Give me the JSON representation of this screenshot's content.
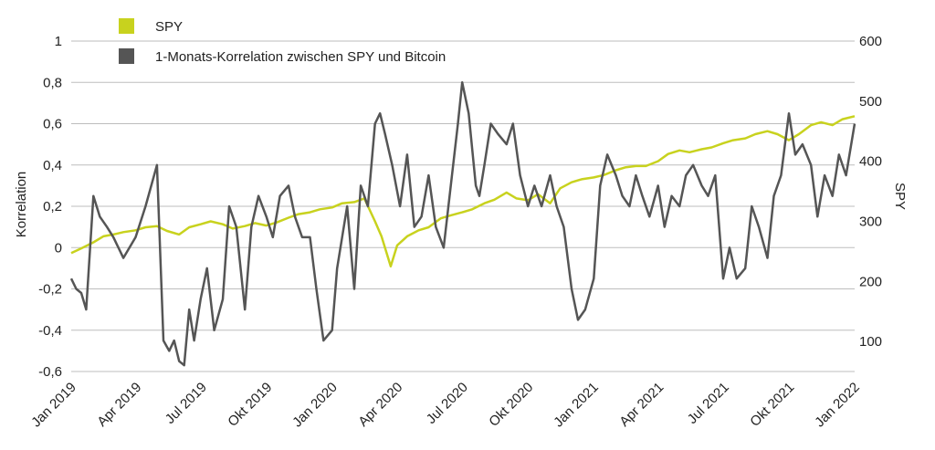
{
  "chart_data": {
    "type": "line",
    "title": "",
    "ylabel": "Korrelation",
    "y2label": "SPY",
    "ylim": [
      -0.6,
      1
    ],
    "y2lim": [
      50,
      600
    ],
    "x_ticks": [
      "Jan 2019",
      "Apr 2019",
      "Jul 2019",
      "Okt 2019",
      "Jan 2020",
      "Apr 2020",
      "Jul 2020",
      "Okt 2020",
      "Jan 2021",
      "Apr 2021",
      "Jul 2021",
      "Okt 2021",
      "Jan 2022"
    ],
    "y_ticks": [
      "1",
      "0,8",
      "0,6",
      "0,4",
      "0,2",
      "0",
      "-0,2",
      "-0,4",
      "-0,6"
    ],
    "y2_ticks": [
      "600",
      "500",
      "400",
      "300",
      "200",
      "100"
    ],
    "grid": "horizontal",
    "legend_position": "top-left",
    "colors": {
      "spy": "#c8d21e",
      "corr": "#555555"
    },
    "series": [
      {
        "name": "SPY",
        "axis": "right",
        "x": [
          "2019-01-01",
          "2019-01-15",
          "2019-02-01",
          "2019-02-15",
          "2019-03-01",
          "2019-03-15",
          "2019-04-01",
          "2019-04-15",
          "2019-05-01",
          "2019-05-15",
          "2019-06-01",
          "2019-06-15",
          "2019-07-01",
          "2019-07-15",
          "2019-08-01",
          "2019-08-15",
          "2019-09-01",
          "2019-09-15",
          "2019-10-01",
          "2019-10-15",
          "2019-11-01",
          "2019-11-15",
          "2019-12-01",
          "2019-12-15",
          "2020-01-01",
          "2020-01-15",
          "2020-02-01",
          "2020-02-15",
          "2020-03-01",
          "2020-03-10",
          "2020-03-23",
          "2020-04-01",
          "2020-04-15",
          "2020-05-01",
          "2020-05-15",
          "2020-06-01",
          "2020-06-15",
          "2020-07-01",
          "2020-07-15",
          "2020-08-01",
          "2020-08-15",
          "2020-09-01",
          "2020-09-15",
          "2020-10-01",
          "2020-10-15",
          "2020-11-01",
          "2020-11-15",
          "2020-12-01",
          "2020-12-15",
          "2021-01-01",
          "2021-01-15",
          "2021-02-01",
          "2021-02-15",
          "2021-03-01",
          "2021-03-15",
          "2021-04-01",
          "2021-04-15",
          "2021-05-01",
          "2021-05-15",
          "2021-06-01",
          "2021-06-15",
          "2021-07-01",
          "2021-07-15",
          "2021-08-01",
          "2021-08-15",
          "2021-09-01",
          "2021-09-15",
          "2021-10-01",
          "2021-10-15",
          "2021-11-01",
          "2021-11-15",
          "2021-12-01",
          "2021-12-15",
          "2022-01-01"
        ],
        "values": [
          247,
          255,
          265,
          275,
          278,
          282,
          285,
          290,
          292,
          284,
          278,
          290,
          295,
          300,
          295,
          288,
          292,
          297,
          293,
          298,
          306,
          312,
          315,
          320,
          323,
          330,
          332,
          338,
          300,
          275,
          225,
          260,
          275,
          285,
          290,
          305,
          310,
          315,
          320,
          330,
          336,
          348,
          338,
          335,
          345,
          330,
          355,
          365,
          370,
          373,
          377,
          385,
          390,
          392,
          392,
          400,
          412,
          418,
          415,
          420,
          423,
          430,
          435,
          438,
          445,
          450,
          445,
          435,
          445,
          460,
          465,
          460,
          470,
          475
        ]
      },
      {
        "name": "1-Monats-Korrelation zwischen SPY und Bitcoin",
        "axis": "left",
        "x": [
          "2019-01-01",
          "2019-01-08",
          "2019-01-15",
          "2019-01-22",
          "2019-02-01",
          "2019-02-10",
          "2019-02-20",
          "2019-03-01",
          "2019-03-15",
          "2019-04-01",
          "2019-04-15",
          "2019-05-01",
          "2019-05-10",
          "2019-05-18",
          "2019-05-25",
          "2019-06-01",
          "2019-06-08",
          "2019-06-15",
          "2019-06-22",
          "2019-07-01",
          "2019-07-10",
          "2019-07-20",
          "2019-08-01",
          "2019-08-10",
          "2019-08-20",
          "2019-09-01",
          "2019-09-10",
          "2019-09-20",
          "2019-10-01",
          "2019-10-10",
          "2019-10-20",
          "2019-11-01",
          "2019-11-10",
          "2019-11-20",
          "2019-12-01",
          "2019-12-10",
          "2019-12-20",
          "2020-01-01",
          "2020-01-08",
          "2020-01-15",
          "2020-01-22",
          "2020-02-01",
          "2020-02-10",
          "2020-02-20",
          "2020-03-01",
          "2020-03-08",
          "2020-03-15",
          "2020-03-25",
          "2020-04-05",
          "2020-04-15",
          "2020-04-25",
          "2020-05-05",
          "2020-05-15",
          "2020-05-25",
          "2020-06-05",
          "2020-06-15",
          "2020-06-25",
          "2020-07-01",
          "2020-07-10",
          "2020-07-20",
          "2020-07-25",
          "2020-08-01",
          "2020-08-10",
          "2020-08-20",
          "2020-09-01",
          "2020-09-10",
          "2020-09-20",
          "2020-10-01",
          "2020-10-10",
          "2020-10-20",
          "2020-11-01",
          "2020-11-10",
          "2020-11-20",
          "2020-12-01",
          "2020-12-10",
          "2020-12-20",
          "2021-01-01",
          "2021-01-10",
          "2021-01-20",
          "2021-02-01",
          "2021-02-10",
          "2021-02-20",
          "2021-03-01",
          "2021-03-10",
          "2021-03-20",
          "2021-04-01",
          "2021-04-10",
          "2021-04-20",
          "2021-05-01",
          "2021-05-10",
          "2021-05-20",
          "2021-06-01",
          "2021-06-10",
          "2021-06-20",
          "2021-07-01",
          "2021-07-10",
          "2021-07-20",
          "2021-08-01",
          "2021-08-10",
          "2021-08-20",
          "2021-09-01",
          "2021-09-10",
          "2021-09-20",
          "2021-10-01",
          "2021-10-10",
          "2021-10-20",
          "2021-11-01",
          "2021-11-10",
          "2021-11-20",
          "2021-12-01",
          "2021-12-10",
          "2021-12-20",
          "2022-01-01"
        ],
        "values": [
          -0.15,
          -0.2,
          -0.22,
          -0.3,
          0.25,
          0.15,
          0.1,
          0.05,
          -0.05,
          0.05,
          0.2,
          0.4,
          -0.45,
          -0.5,
          -0.45,
          -0.55,
          -0.57,
          -0.3,
          -0.45,
          -0.25,
          -0.1,
          -0.4,
          -0.25,
          0.2,
          0.1,
          -0.3,
          0.1,
          0.25,
          0.15,
          0.05,
          0.25,
          0.3,
          0.15,
          0.05,
          0.05,
          -0.2,
          -0.45,
          -0.4,
          -0.1,
          0.05,
          0.2,
          -0.2,
          0.3,
          0.2,
          0.6,
          0.65,
          0.55,
          0.4,
          0.2,
          0.45,
          0.1,
          0.15,
          0.35,
          0.1,
          0.0,
          0.3,
          0.6,
          0.8,
          0.65,
          0.3,
          0.25,
          0.4,
          0.6,
          0.55,
          0.5,
          0.6,
          0.35,
          0.2,
          0.3,
          0.2,
          0.35,
          0.2,
          0.1,
          -0.2,
          -0.35,
          -0.3,
          -0.15,
          0.3,
          0.45,
          0.35,
          0.25,
          0.2,
          0.35,
          0.25,
          0.15,
          0.3,
          0.1,
          0.25,
          0.2,
          0.35,
          0.4,
          0.3,
          0.25,
          0.35,
          -0.15,
          0.0,
          -0.15,
          -0.1,
          0.2,
          0.1,
          -0.05,
          0.25,
          0.35,
          0.65,
          0.45,
          0.5,
          0.4,
          0.15,
          0.35,
          0.25,
          0.45,
          0.35,
          0.6
        ]
      }
    ]
  }
}
